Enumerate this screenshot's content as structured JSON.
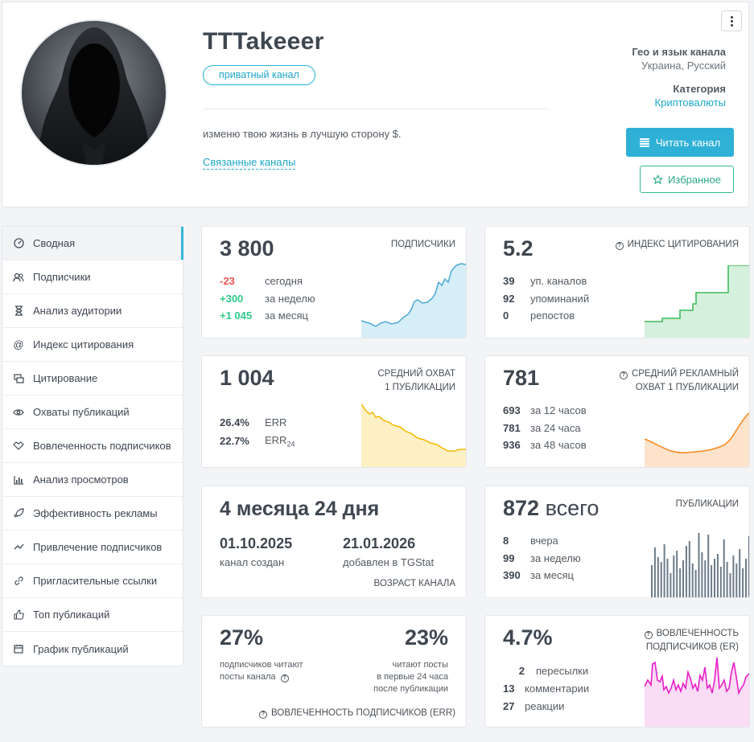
{
  "channel": {
    "title": "TTTakeeer",
    "badge": "приватный канал",
    "description": "изменю твою жизнь в лучшую сторону $.",
    "related_link": "Связанные каналы",
    "geo_label": "Гео и язык канала",
    "geo_value": "Украина, Русский",
    "category_label": "Категория",
    "category_value": "Криптовалюты",
    "read_button": "Читать канал",
    "fav_button": "Избранное"
  },
  "sidebar": {
    "items": [
      {
        "label": "Сводная",
        "icon": "dashboard-icon",
        "active": true
      },
      {
        "label": "Подписчики",
        "icon": "users-icon"
      },
      {
        "label": "Анализ аудитории",
        "icon": "hourglass-icon"
      },
      {
        "label": "Индекс цитирования",
        "icon": "at-icon"
      },
      {
        "label": "Цитирование",
        "icon": "quote-icon"
      },
      {
        "label": "Охваты публикаций",
        "icon": "eye-icon"
      },
      {
        "label": "Вовлеченность подписчиков",
        "icon": "handshake-icon"
      },
      {
        "label": "Анализ просмотров",
        "icon": "bar-chart-icon"
      },
      {
        "label": "Эффективность рекламы",
        "icon": "rocket-icon"
      },
      {
        "label": "Привлечение подписчиков",
        "icon": "trend-icon"
      },
      {
        "label": "Пригласительные ссылки",
        "icon": "link-icon"
      },
      {
        "label": "Топ публикаций",
        "icon": "thumbs-up-icon"
      },
      {
        "label": "График публикаций",
        "icon": "calendar-icon"
      }
    ]
  },
  "cards": {
    "subscribers": {
      "value": "3 800",
      "title": "ПОДПИСЧИКИ",
      "rows": [
        {
          "v": "-23",
          "l": "сегодня"
        },
        {
          "v": "+300",
          "l": "за неделю"
        },
        {
          "v": "+1 045",
          "l": "за месяц"
        }
      ]
    },
    "citation": {
      "value": "5.2",
      "title": "ИНДЕКС ЦИТИРОВАНИЯ",
      "rows": [
        {
          "v": "39",
          "l": "уп. каналов"
        },
        {
          "v": "92",
          "l": "упоминаний"
        },
        {
          "v": "0",
          "l": "репостов"
        }
      ]
    },
    "reach": {
      "value": "1 004",
      "title1": "СРЕДНИЙ ОХВАТ",
      "title2": "1 ПУБЛИКАЦИИ",
      "rows": [
        {
          "v": "26.4%",
          "l": "ERR"
        },
        {
          "v": "22.7%",
          "l": "ERR",
          "sub": "24"
        }
      ]
    },
    "ad_reach": {
      "value": "781",
      "title1": "СРЕДНИЙ РЕКЛАМНЫЙ",
      "title2": "ОХВАТ 1 ПУБЛИКАЦИИ",
      "rows": [
        {
          "v": "693",
          "l": "за 12 часов"
        },
        {
          "v": "781",
          "l": "за 24 часа"
        },
        {
          "v": "936",
          "l": "за 48 часов"
        }
      ]
    },
    "age": {
      "value": "4 месяца 24 дня",
      "created_date": "01.10.2025",
      "created_label": "канал создан",
      "added_date": "21.01.2026",
      "added_label": "добавлен в TGStat",
      "title": "ВОЗРАСТ КАНАЛА"
    },
    "posts": {
      "value": "872",
      "value_suffix": "всего",
      "title": "ПУБЛИКАЦИИ",
      "rows": [
        {
          "v": "8",
          "l": "вчера"
        },
        {
          "v": "99",
          "l": "за неделю"
        },
        {
          "v": "390",
          "l": "за месяц"
        }
      ]
    },
    "err": {
      "left_value": "27%",
      "left_label1": "подписчиков читают",
      "left_label2": "посты канала",
      "right_value": "23%",
      "right_label1": "читают посты",
      "right_label2": "в первые 24 часа",
      "right_label3": "после публикации",
      "title": "ВОВЛЕЧЕННОСТЬ ПОДПИСЧИКОВ (ERR)"
    },
    "er": {
      "value": "4.7%",
      "title1": "ВОВЛЕЧЕННОСТЬ",
      "title2": "ПОДПИСЧИКОВ (ER)",
      "rows": [
        {
          "v": "2",
          "l": "пересылки"
        },
        {
          "v": "13",
          "l": "комментарии"
        },
        {
          "v": "27",
          "l": "реакции"
        }
      ]
    }
  },
  "colors": {
    "accent": "#2fb0d6",
    "green": "#34bc94",
    "subs_chart": "#5bb8dc",
    "cite_chart": "#3dbb5b",
    "reach_chart": "#f5b800",
    "adreach_chart": "#f58c1e",
    "posts_chart": "#6b7b8a",
    "er_chart": "#e91ec9"
  }
}
